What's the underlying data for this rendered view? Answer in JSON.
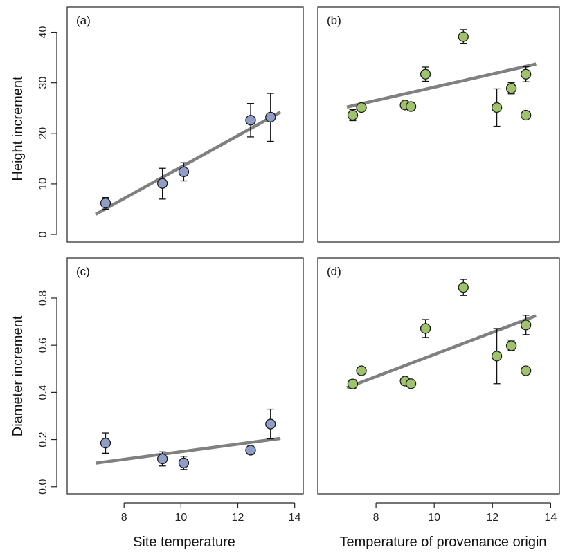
{
  "colors": {
    "site": "#8f9ec9",
    "provenance": "#9ec36a",
    "fit": "#808080"
  },
  "chart_data": [
    {
      "type": "scatter",
      "panel_label": "(a)",
      "xlabel": "Site temperature",
      "ylabel": "Height increment",
      "xlim": [
        6.0,
        14.3
      ],
      "ylim": [
        -1.5,
        45.0
      ],
      "xticks": [
        8,
        10,
        12,
        14
      ],
      "yticks": [
        0,
        10,
        20,
        30,
        40
      ],
      "x_tick_labels": [
        "8",
        "10",
        "12",
        "14"
      ],
      "y_tick_labels": [
        "0",
        "10",
        "20",
        "30",
        "40"
      ],
      "color": "#8f9ec9",
      "points": [
        {
          "x": 7.35,
          "y": 6.2,
          "lo": 5.0,
          "hi": 7.3
        },
        {
          "x": 9.35,
          "y": 10.1,
          "lo": 7.0,
          "hi": 13.1
        },
        {
          "x": 10.1,
          "y": 12.4,
          "lo": 10.6,
          "hi": 14.2
        },
        {
          "x": 12.45,
          "y": 22.6,
          "lo": 19.3,
          "hi": 25.9
        },
        {
          "x": 13.15,
          "y": 23.2,
          "lo": 18.4,
          "hi": 27.9
        }
      ],
      "fit": {
        "x": [
          7.0,
          13.5
        ],
        "y": [
          4.0,
          24.2
        ]
      }
    },
    {
      "type": "scatter",
      "panel_label": "(b)",
      "xlabel": "Temperature of provenance origin",
      "ylabel": "",
      "xlim": [
        6.0,
        14.3
      ],
      "ylim": [
        -1.5,
        45.0
      ],
      "xticks": [
        8,
        10,
        12,
        14
      ],
      "yticks": [
        0,
        10,
        20,
        30,
        40
      ],
      "x_tick_labels": [],
      "y_tick_labels": [],
      "color": "#9ec36a",
      "points": [
        {
          "x": 7.2,
          "y": 23.6,
          "lo": 22.5,
          "hi": 24.7
        },
        {
          "x": 7.5,
          "y": 25.1,
          "lo": 24.5,
          "hi": 25.7
        },
        {
          "x": 9.0,
          "y": 25.6,
          "lo": 25.2,
          "hi": 26.0
        },
        {
          "x": 9.2,
          "y": 25.3,
          "lo": 24.9,
          "hi": 25.7
        },
        {
          "x": 9.7,
          "y": 31.7,
          "lo": 30.3,
          "hi": 33.1
        },
        {
          "x": 11.0,
          "y": 39.1,
          "lo": 37.8,
          "hi": 40.5
        },
        {
          "x": 12.15,
          "y": 25.1,
          "lo": 21.4,
          "hi": 28.8
        },
        {
          "x": 12.65,
          "y": 28.9,
          "lo": 27.8,
          "hi": 30.0
        },
        {
          "x": 13.15,
          "y": 31.7,
          "lo": 30.2,
          "hi": 33.2
        },
        {
          "x": 13.15,
          "y": 23.6,
          "lo": 23.2,
          "hi": 24.0
        }
      ],
      "fit": {
        "x": [
          7.0,
          13.5
        ],
        "y": [
          25.2,
          33.7
        ]
      }
    },
    {
      "type": "scatter",
      "panel_label": "(c)",
      "xlabel": "Site temperature",
      "ylabel": "Diameter increment",
      "xlim": [
        6.0,
        14.3
      ],
      "ylim": [
        -0.03,
        0.97
      ],
      "xticks": [
        8,
        10,
        12,
        14
      ],
      "yticks": [
        0.0,
        0.2,
        0.4,
        0.6,
        0.8
      ],
      "x_tick_labels": [
        "8",
        "10",
        "12",
        "14"
      ],
      "y_tick_labels": [
        "0.0",
        "0.2",
        "0.4",
        "0.6",
        "0.8"
      ],
      "color": "#8f9ec9",
      "points": [
        {
          "x": 7.35,
          "y": 0.185,
          "lo": 0.142,
          "hi": 0.228
        },
        {
          "x": 9.35,
          "y": 0.118,
          "lo": 0.088,
          "hi": 0.148
        },
        {
          "x": 10.1,
          "y": 0.101,
          "lo": 0.073,
          "hi": 0.129
        },
        {
          "x": 12.45,
          "y": 0.155,
          "lo": 0.138,
          "hi": 0.172
        },
        {
          "x": 13.15,
          "y": 0.266,
          "lo": 0.203,
          "hi": 0.329
        }
      ],
      "fit": {
        "x": [
          7.0,
          13.5
        ],
        "y": [
          0.1,
          0.205
        ]
      }
    },
    {
      "type": "scatter",
      "panel_label": "(d)",
      "xlabel": "Temperature of provenance origin",
      "ylabel": "",
      "xlim": [
        6.0,
        14.3
      ],
      "ylim": [
        -0.03,
        0.97
      ],
      "xticks": [
        8,
        10,
        12,
        14
      ],
      "yticks": [
        0.0,
        0.2,
        0.4,
        0.6,
        0.8
      ],
      "x_tick_labels": [
        "8",
        "10",
        "12",
        "14"
      ],
      "y_tick_labels": [],
      "color": "#9ec36a",
      "points": [
        {
          "x": 7.2,
          "y": 0.436,
          "lo": 0.418,
          "hi": 0.454
        },
        {
          "x": 7.5,
          "y": 0.492,
          "lo": 0.482,
          "hi": 0.502
        },
        {
          "x": 9.0,
          "y": 0.448,
          "lo": 0.44,
          "hi": 0.456
        },
        {
          "x": 9.2,
          "y": 0.437,
          "lo": 0.429,
          "hi": 0.445
        },
        {
          "x": 9.7,
          "y": 0.671,
          "lo": 0.633,
          "hi": 0.709
        },
        {
          "x": 11.0,
          "y": 0.845,
          "lo": 0.811,
          "hi": 0.879
        },
        {
          "x": 12.15,
          "y": 0.554,
          "lo": 0.437,
          "hi": 0.671
        },
        {
          "x": 12.65,
          "y": 0.598,
          "lo": 0.578,
          "hi": 0.618
        },
        {
          "x": 13.15,
          "y": 0.686,
          "lo": 0.645,
          "hi": 0.727
        },
        {
          "x": 13.15,
          "y": 0.492,
          "lo": 0.484,
          "hi": 0.5
        }
      ],
      "fit": {
        "x": [
          7.0,
          13.5
        ],
        "y": [
          0.42,
          0.725
        ]
      }
    }
  ]
}
